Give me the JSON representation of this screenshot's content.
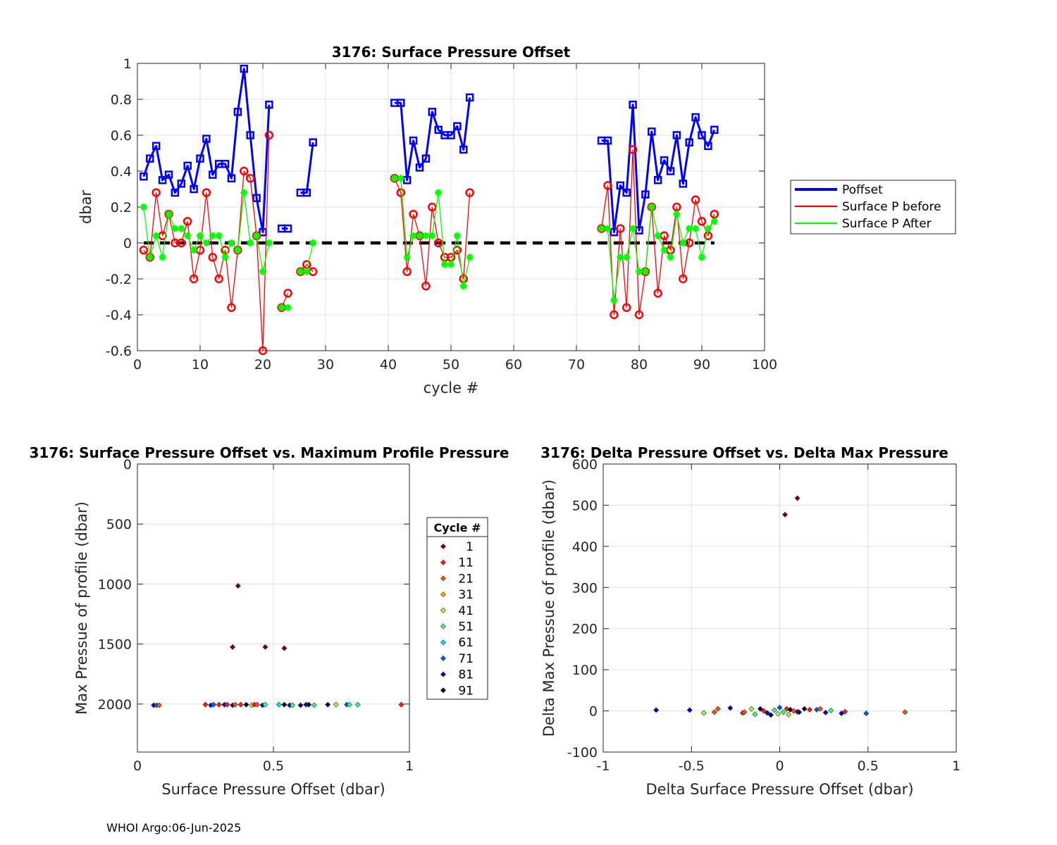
{
  "footer": "WHOI Argo:06-Jun-2025",
  "chart_data": [
    {
      "type": "line",
      "title": "3176: Surface Pressure Offset",
      "xlabel": "cycle #",
      "ylabel": "dbar",
      "xlim": [
        0,
        100
      ],
      "ylim": [
        -0.6,
        1
      ],
      "xticks": [
        0,
        10,
        20,
        30,
        40,
        50,
        60,
        70,
        80,
        90,
        100
      ],
      "yticks": [
        -0.6,
        -0.4,
        -0.2,
        0,
        0.2,
        0.4,
        0.6,
        0.8,
        1
      ],
      "grid": true,
      "legend_position": "right",
      "zero_line": {
        "y": 0,
        "x_range": [
          1,
          92
        ],
        "style": "black dashed"
      },
      "series": [
        {
          "name": "Poffset",
          "color": "#0000ff",
          "marker": "square",
          "width": 3,
          "x": [
            1,
            2,
            3,
            4,
            5,
            6,
            7,
            8,
            9,
            10,
            11,
            12,
            13,
            14,
            15,
            16,
            17,
            18,
            19,
            20,
            21,
            null,
            23,
            24,
            null,
            26,
            27,
            28,
            null,
            41,
            42,
            43,
            44,
            45,
            46,
            47,
            48,
            49,
            50,
            51,
            52,
            53,
            null,
            74,
            75,
            76,
            77,
            78,
            79,
            80,
            81,
            82,
            83,
            84,
            85,
            86,
            87,
            88,
            89,
            90,
            91,
            92
          ],
          "y": [
            0.37,
            0.47,
            0.54,
            0.35,
            0.38,
            0.28,
            0.33,
            0.43,
            0.3,
            0.47,
            0.58,
            0.38,
            0.44,
            0.44,
            0.36,
            0.73,
            0.97,
            0.6,
            0.25,
            0.06,
            0.77,
            null,
            0.08,
            0.08,
            null,
            0.28,
            0.28,
            0.56,
            null,
            0.78,
            0.78,
            0.35,
            0.57,
            0.42,
            0.47,
            0.73,
            0.63,
            0.6,
            0.6,
            0.65,
            0.52,
            0.81,
            null,
            0.57,
            0.57,
            0.06,
            0.32,
            0.28,
            0.77,
            0.07,
            0.27,
            0.62,
            0.35,
            0.46,
            0.4,
            0.6,
            0.33,
            0.56,
            0.7,
            0.6,
            0.54,
            0.63
          ]
        },
        {
          "name": "Surface P before",
          "color": "#ff0000",
          "marker": "circle",
          "width": 1.3,
          "x": [
            1,
            2,
            3,
            4,
            5,
            6,
            7,
            8,
            9,
            10,
            11,
            12,
            13,
            14,
            15,
            16,
            17,
            18,
            19,
            20,
            21,
            null,
            23,
            24,
            null,
            26,
            27,
            28,
            null,
            41,
            42,
            43,
            44,
            45,
            46,
            47,
            48,
            49,
            50,
            51,
            52,
            53,
            null,
            74,
            75,
            76,
            77,
            78,
            79,
            80,
            81,
            82,
            83,
            84,
            85,
            86,
            87,
            88,
            89,
            90,
            91,
            92
          ],
          "y": [
            -0.04,
            -0.08,
            0.28,
            0.04,
            0.16,
            0.0,
            0.0,
            0.12,
            -0.2,
            -0.04,
            0.28,
            -0.08,
            -0.2,
            -0.04,
            -0.36,
            -0.04,
            0.4,
            0.36,
            0.04,
            -0.6,
            0.6,
            null,
            -0.36,
            -0.28,
            null,
            -0.16,
            -0.12,
            -0.16,
            null,
            0.36,
            0.28,
            -0.16,
            0.16,
            0.04,
            -0.24,
            0.2,
            0.0,
            -0.08,
            -0.08,
            -0.04,
            -0.2,
            0.28,
            null,
            0.08,
            0.32,
            -0.4,
            0.08,
            -0.36,
            0.52,
            -0.4,
            -0.16,
            0.2,
            -0.28,
            0.04,
            -0.04,
            0.2,
            -0.2,
            0.0,
            0.24,
            0.12,
            0.04,
            0.16
          ]
        },
        {
          "name": "Surface P After",
          "color": "#00ff00",
          "marker": "asterisk",
          "width": 1.3,
          "x": [
            1,
            2,
            3,
            4,
            5,
            6,
            7,
            8,
            9,
            10,
            11,
            12,
            13,
            14,
            15,
            16,
            17,
            18,
            19,
            20,
            21,
            null,
            23,
            24,
            null,
            26,
            27,
            28,
            null,
            41,
            42,
            43,
            44,
            45,
            46,
            47,
            48,
            49,
            50,
            51,
            52,
            53,
            null,
            74,
            75,
            76,
            77,
            78,
            79,
            80,
            81,
            82,
            83,
            84,
            85,
            86,
            87,
            88,
            89,
            90,
            91,
            92
          ],
          "y": [
            0.2,
            -0.08,
            0.04,
            -0.08,
            0.16,
            0.08,
            0.08,
            0.04,
            -0.04,
            0.04,
            0.0,
            0.04,
            0.04,
            -0.08,
            0.0,
            -0.04,
            0.28,
            0.0,
            0.04,
            -0.16,
            0.0,
            null,
            -0.36,
            -0.36,
            null,
            -0.16,
            -0.16,
            0.0,
            null,
            0.36,
            0.36,
            -0.08,
            0.04,
            0.04,
            0.04,
            0.04,
            0.28,
            -0.12,
            -0.12,
            0.04,
            -0.24,
            -0.08,
            null,
            0.08,
            0.08,
            -0.32,
            -0.08,
            -0.08,
            0.08,
            -0.16,
            -0.16,
            0.2,
            0.04,
            -0.04,
            -0.08,
            0.16,
            0.0,
            0.08,
            0.08,
            -0.08,
            0.08,
            0.12
          ]
        }
      ]
    },
    {
      "type": "scatter",
      "title": "3176: Surface Pressure Offset vs. Maximum Profile Pressure",
      "xlabel": "Surface Pressure Offset (dbar)",
      "ylabel": "Max Pressue of profile (dbar)",
      "xlim": [
        0,
        1
      ],
      "ylim": [
        0,
        2400
      ],
      "y_reversed": true,
      "xticks": [
        0,
        0.5,
        1
      ],
      "yticks": [
        0,
        500,
        1000,
        1500,
        2000
      ],
      "grid": true,
      "legend_title": "Cycle #",
      "legend": [
        {
          "label": "1",
          "color": "#800000"
        },
        {
          "label": "11",
          "color": "#ff1a00"
        },
        {
          "label": "21",
          "color": "#ff5000"
        },
        {
          "label": "31",
          "color": "#ffaa00"
        },
        {
          "label": "41",
          "color": "#99ff33"
        },
        {
          "label": "51",
          "color": "#33ff77"
        },
        {
          "label": "61",
          "color": "#00ddff"
        },
        {
          "label": "71",
          "color": "#0055ff"
        },
        {
          "label": "81",
          "color": "#0000dd"
        },
        {
          "label": "91",
          "color": "#000044"
        }
      ],
      "points": [
        {
          "x": 0.37,
          "y": 1015,
          "color": "#800000"
        },
        {
          "x": 0.35,
          "y": 1525,
          "color": "#800000"
        },
        {
          "x": 0.47,
          "y": 1525,
          "color": "#800000"
        },
        {
          "x": 0.54,
          "y": 1535,
          "color": "#800000"
        },
        {
          "x": 0.06,
          "y": 2010,
          "color": "#0000dd"
        },
        {
          "x": 0.07,
          "y": 2010,
          "color": "#0055ff"
        },
        {
          "x": 0.08,
          "y": 2010,
          "color": "#ff5000"
        },
        {
          "x": 0.25,
          "y": 2005,
          "color": "#ff1a00"
        },
        {
          "x": 0.27,
          "y": 2010,
          "color": "#0000dd"
        },
        {
          "x": 0.28,
          "y": 2005,
          "color": "#0055ff"
        },
        {
          "x": 0.3,
          "y": 2005,
          "color": "#ff1a00"
        },
        {
          "x": 0.32,
          "y": 2005,
          "color": "#0000dd"
        },
        {
          "x": 0.33,
          "y": 2005,
          "color": "#ff1a00"
        },
        {
          "x": 0.35,
          "y": 2010,
          "color": "#0000dd"
        },
        {
          "x": 0.36,
          "y": 2005,
          "color": "#ff5000"
        },
        {
          "x": 0.38,
          "y": 2005,
          "color": "#ff1a00"
        },
        {
          "x": 0.4,
          "y": 2005,
          "color": "#000044"
        },
        {
          "x": 0.42,
          "y": 2010,
          "color": "#99ff33"
        },
        {
          "x": 0.43,
          "y": 2005,
          "color": "#ff1a00"
        },
        {
          "x": 0.44,
          "y": 2005,
          "color": "#ff5000"
        },
        {
          "x": 0.46,
          "y": 2010,
          "color": "#0000dd"
        },
        {
          "x": 0.47,
          "y": 2005,
          "color": "#33ff77"
        },
        {
          "x": 0.52,
          "y": 2005,
          "color": "#00ddff"
        },
        {
          "x": 0.54,
          "y": 2005,
          "color": "#000044"
        },
        {
          "x": 0.56,
          "y": 2010,
          "color": "#0000dd"
        },
        {
          "x": 0.57,
          "y": 2010,
          "color": "#33ff77"
        },
        {
          "x": 0.6,
          "y": 2010,
          "color": "#000044"
        },
        {
          "x": 0.62,
          "y": 2005,
          "color": "#0000dd"
        },
        {
          "x": 0.63,
          "y": 2005,
          "color": "#000044"
        },
        {
          "x": 0.65,
          "y": 2010,
          "color": "#33ff77"
        },
        {
          "x": 0.7,
          "y": 2005,
          "color": "#000044"
        },
        {
          "x": 0.73,
          "y": 2005,
          "color": "#99ff33"
        },
        {
          "x": 0.77,
          "y": 2005,
          "color": "#0055ff"
        },
        {
          "x": 0.78,
          "y": 2005,
          "color": "#33ff77"
        },
        {
          "x": 0.81,
          "y": 2005,
          "color": "#33ff77"
        },
        {
          "x": 0.97,
          "y": 2005,
          "color": "#ff1a00"
        }
      ]
    },
    {
      "type": "scatter",
      "title": "3176: Delta Pressure Offset vs. Delta Max Pressure",
      "xlabel": "Delta Surface Pressure Offset (dbar)",
      "ylabel": "Delta Max Pressue of profile (dbar)",
      "xlim": [
        -1,
        1
      ],
      "ylim": [
        -100,
        600
      ],
      "xticks": [
        -1,
        -0.5,
        0,
        0.5,
        1
      ],
      "yticks": [
        -100,
        0,
        100,
        200,
        300,
        400,
        500,
        600
      ],
      "grid": true,
      "points": [
        {
          "x": 0.1,
          "y": 517,
          "color": "#800000"
        },
        {
          "x": 0.03,
          "y": 477,
          "color": "#800000"
        },
        {
          "x": -0.7,
          "y": 2,
          "color": "#0000dd"
        },
        {
          "x": -0.51,
          "y": 2,
          "color": "#0000dd"
        },
        {
          "x": -0.43,
          "y": -5,
          "color": "#99ff33"
        },
        {
          "x": -0.37,
          "y": -3,
          "color": "#ff5000"
        },
        {
          "x": -0.35,
          "y": 5,
          "color": "#ff5000"
        },
        {
          "x": -0.28,
          "y": 7,
          "color": "#0000dd"
        },
        {
          "x": -0.21,
          "y": -5,
          "color": "#ff1a00"
        },
        {
          "x": -0.2,
          "y": -3,
          "color": "#ff5000"
        },
        {
          "x": -0.16,
          "y": 5,
          "color": "#99ff33"
        },
        {
          "x": -0.14,
          "y": -8,
          "color": "#33ff77"
        },
        {
          "x": -0.11,
          "y": 5,
          "color": "#000044"
        },
        {
          "x": -0.09,
          "y": 0,
          "color": "#ff1a00"
        },
        {
          "x": -0.07,
          "y": -5,
          "color": "#0000dd"
        },
        {
          "x": -0.05,
          "y": -10,
          "color": "#000044"
        },
        {
          "x": -0.03,
          "y": 2,
          "color": "#33ff77"
        },
        {
          "x": -0.01,
          "y": -7,
          "color": "#99ff33"
        },
        {
          "x": 0.0,
          "y": 8,
          "color": "#0055ff"
        },
        {
          "x": 0.02,
          "y": -3,
          "color": "#33ff77"
        },
        {
          "x": 0.04,
          "y": 5,
          "color": "#ff1a00"
        },
        {
          "x": 0.05,
          "y": -9,
          "color": "#99ff33"
        },
        {
          "x": 0.06,
          "y": 3,
          "color": "#000044"
        },
        {
          "x": 0.08,
          "y": 0,
          "color": "#ff5000"
        },
        {
          "x": 0.1,
          "y": -2,
          "color": "#800000"
        },
        {
          "x": 0.11,
          "y": -3,
          "color": "#0000dd"
        },
        {
          "x": 0.14,
          "y": 5,
          "color": "#000044"
        },
        {
          "x": 0.17,
          "y": 3,
          "color": "#ff1a00"
        },
        {
          "x": 0.21,
          "y": 3,
          "color": "#0055ff"
        },
        {
          "x": 0.23,
          "y": 5,
          "color": "#ff5000"
        },
        {
          "x": 0.26,
          "y": -4,
          "color": "#0000dd"
        },
        {
          "x": 0.29,
          "y": 1,
          "color": "#33ff77"
        },
        {
          "x": 0.35,
          "y": -6,
          "color": "#0000dd"
        },
        {
          "x": 0.37,
          "y": -2,
          "color": "#ff1a00"
        },
        {
          "x": 0.49,
          "y": -6,
          "color": "#0055ff"
        },
        {
          "x": 0.71,
          "y": -3,
          "color": "#ff5000"
        }
      ]
    }
  ]
}
